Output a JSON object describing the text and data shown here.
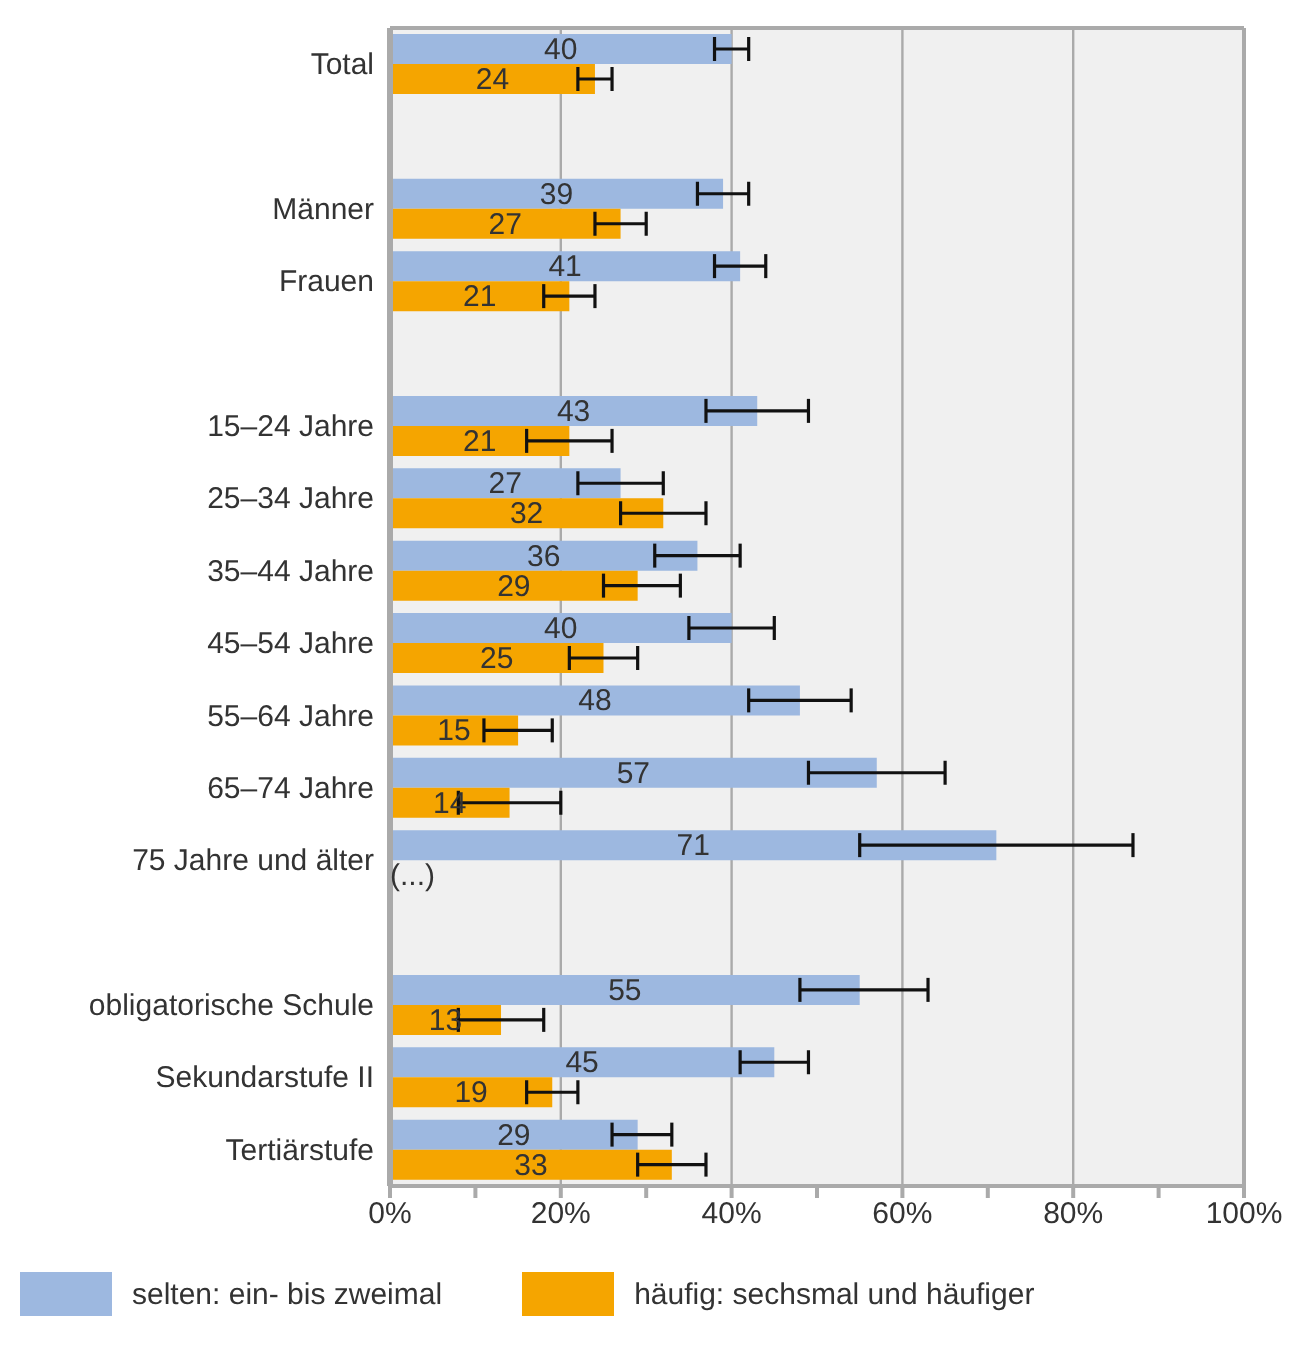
{
  "chart_data": {
    "type": "bar",
    "orientation": "horizontal",
    "categories": [
      "Total",
      null,
      "Männer",
      "Frauen",
      null,
      "15–24 Jahre",
      "25–34 Jahre",
      "35–44 Jahre",
      "45–54 Jahre",
      "55–64 Jahre",
      "65–74 Jahre",
      "75 Jahre und älter",
      null,
      "obligatorische Schule",
      "Sekundarstufe II",
      "Tertiärstufe"
    ],
    "series": [
      {
        "name": "selten: ein- bis zweimal",
        "color": "#9db8e0",
        "values": [
          40,
          null,
          39,
          41,
          null,
          43,
          27,
          36,
          40,
          48,
          57,
          71,
          null,
          55,
          45,
          29
        ],
        "errors": [
          [
            38,
            42
          ],
          null,
          [
            36,
            42
          ],
          [
            38,
            44
          ],
          null,
          [
            37,
            49
          ],
          [
            22,
            32
          ],
          [
            31,
            41
          ],
          [
            35,
            45
          ],
          [
            42,
            54
          ],
          [
            49,
            65
          ],
          [
            55,
            87
          ],
          null,
          [
            48,
            63
          ],
          [
            41,
            49
          ],
          [
            26,
            33
          ]
        ],
        "value_labels": [
          "40",
          null,
          "39",
          "41",
          null,
          "43",
          "27",
          "36",
          "40",
          "48",
          "57",
          "71",
          null,
          "55",
          "45",
          "29"
        ]
      },
      {
        "name": "häufig: sechsmal und häufiger",
        "color": "#f5a500",
        "values": [
          24,
          null,
          27,
          21,
          null,
          21,
          32,
          29,
          25,
          15,
          14,
          null,
          null,
          13,
          19,
          33
        ],
        "errors": [
          [
            22,
            26
          ],
          null,
          [
            24,
            30
          ],
          [
            18,
            24
          ],
          null,
          [
            16,
            26
          ],
          [
            27,
            37
          ],
          [
            25,
            34
          ],
          [
            21,
            29
          ],
          [
            11,
            19
          ],
          [
            8,
            20
          ],
          null,
          null,
          [
            8,
            18
          ],
          [
            16,
            22
          ],
          [
            29,
            37
          ]
        ],
        "value_labels": [
          "24",
          null,
          "27",
          "21",
          null,
          "21",
          "32",
          "29",
          "25",
          "15",
          "14",
          "(...)",
          null,
          "13",
          "19",
          "33"
        ]
      }
    ],
    "xlim": [
      0,
      100
    ],
    "xticks": [
      {
        "value": 0,
        "label": "0%"
      },
      {
        "value": 10,
        "label": null
      },
      {
        "value": 20,
        "label": "20%"
      },
      {
        "value": 30,
        "label": null
      },
      {
        "value": 40,
        "label": "40%"
      },
      {
        "value": 50,
        "label": null
      },
      {
        "value": 60,
        "label": "60%"
      },
      {
        "value": 70,
        "label": null
      },
      {
        "value": 80,
        "label": "80%"
      },
      {
        "value": 90,
        "label": null
      },
      {
        "value": 100,
        "label": "100%"
      }
    ],
    "grid": "x",
    "legend": "bottom"
  }
}
